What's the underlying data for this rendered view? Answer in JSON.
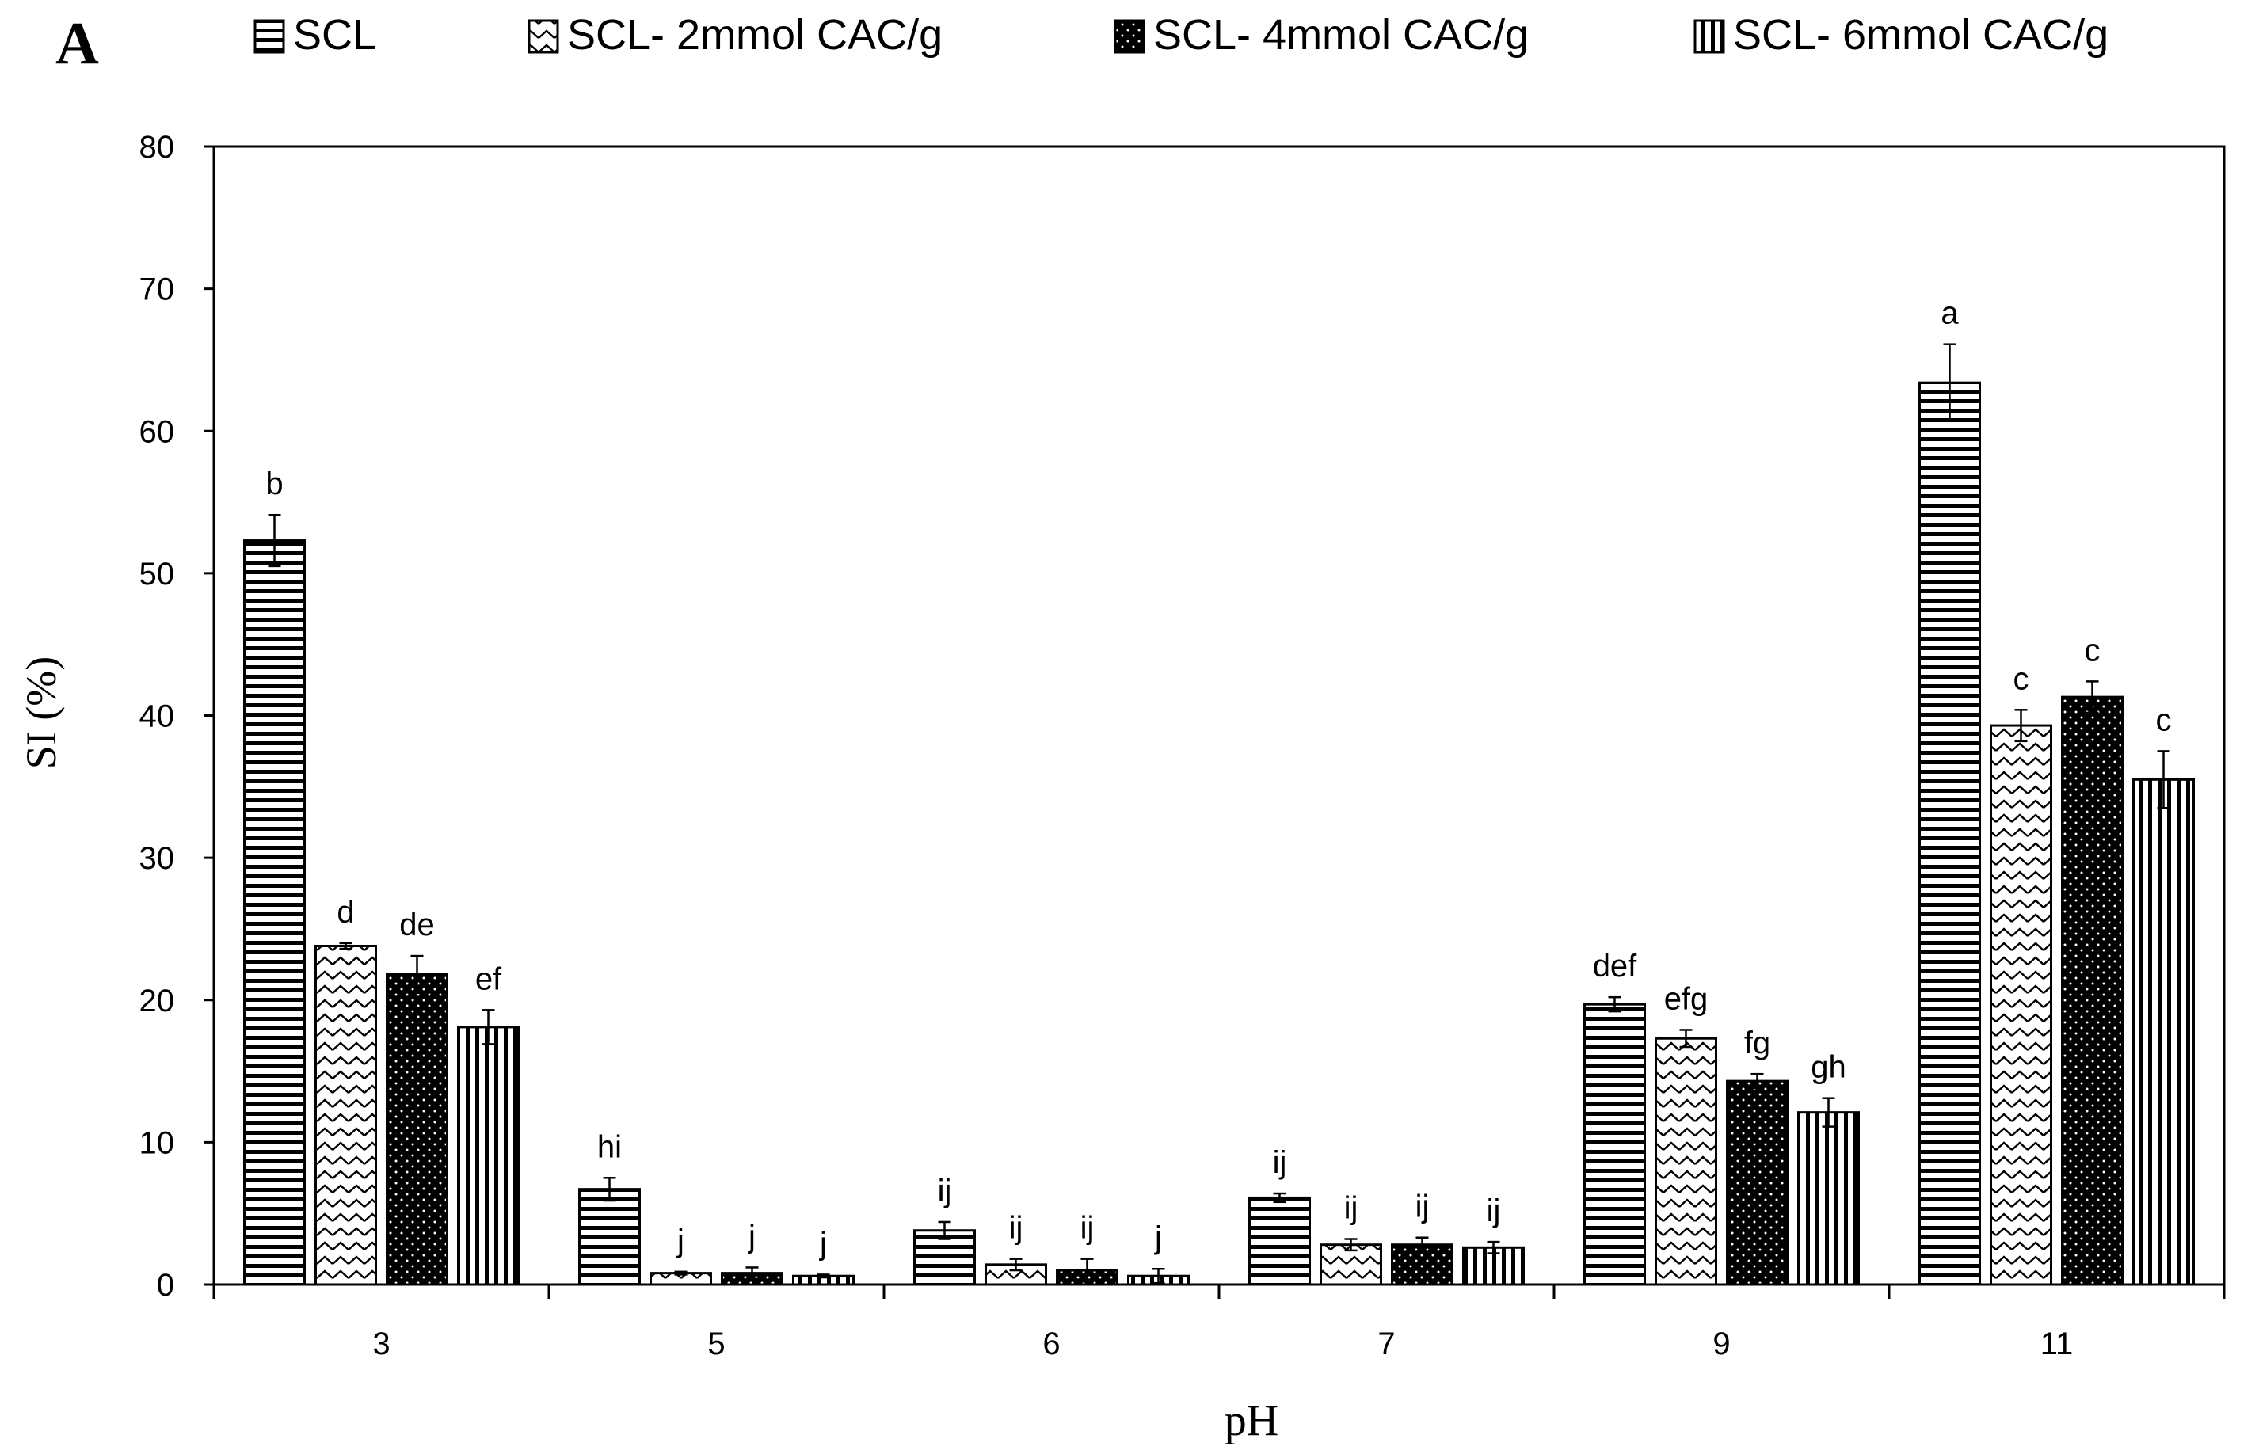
{
  "panel_label": "A",
  "chart_data": {
    "type": "bar",
    "xlabel": "pH",
    "ylabel": "SI (%)",
    "ylim": [
      0,
      80
    ],
    "yticks": [
      0,
      10,
      20,
      30,
      40,
      50,
      60,
      70,
      80
    ],
    "grid": false,
    "legend_position": "top",
    "categories": [
      "3",
      "5",
      "6",
      "7",
      "9",
      "11"
    ],
    "series": [
      {
        "name": "SCL",
        "pattern": "horizontal-lines",
        "values": [
          52.3,
          6.7,
          3.8,
          6.1,
          19.7,
          63.4
        ],
        "errors": [
          1.8,
          0.8,
          0.6,
          0.3,
          0.5,
          2.7
        ],
        "letters": [
          "b",
          "hi",
          "ij",
          "ij",
          "def",
          "a"
        ]
      },
      {
        "name": "SCL- 2mmol CAC/g",
        "pattern": "zigzag",
        "values": [
          23.8,
          0.8,
          1.4,
          2.8,
          17.3,
          39.3
        ],
        "errors": [
          0.2,
          0.1,
          0.4,
          0.4,
          0.6,
          1.1
        ],
        "letters": [
          "d",
          "j",
          "ij",
          "ij",
          "efg",
          "c"
        ]
      },
      {
        "name": "SCL- 4mmol CAC/g",
        "pattern": "black-dotted",
        "values": [
          21.8,
          0.8,
          1.0,
          2.8,
          14.3,
          41.3
        ],
        "errors": [
          1.3,
          0.4,
          0.8,
          0.5,
          0.5,
          1.1
        ],
        "letters": [
          "de",
          "j",
          "ij",
          "ij",
          "fg",
          "c"
        ]
      },
      {
        "name": "SCL- 6mmol CAC/g",
        "pattern": "vertical-lines",
        "values": [
          18.1,
          0.6,
          0.6,
          2.6,
          12.1,
          35.5
        ],
        "errors": [
          1.2,
          0.1,
          0.5,
          0.4,
          1.0,
          2.0
        ],
        "letters": [
          "ef",
          "j",
          "j",
          "ij",
          "gh",
          "c"
        ]
      }
    ]
  }
}
